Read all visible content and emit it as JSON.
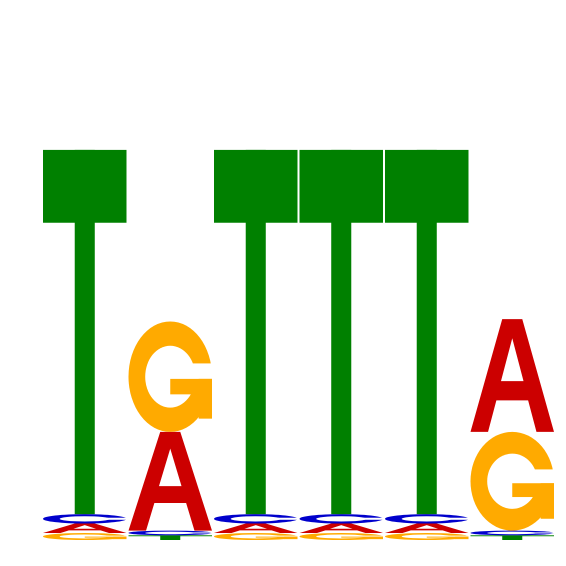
{
  "chart_data": {
    "type": "sequence-logo",
    "alphabet": [
      "A",
      "C",
      "G",
      "T"
    ],
    "colors": {
      "A": "#cc0000",
      "C": "#0000cc",
      "G": "#ffaa00",
      "T": "#008000"
    },
    "positions": [
      {
        "position": 1,
        "heights": {
          "T": 1.55,
          "A": 0.04,
          "G": 0.03,
          "C": 0.04
        }
      },
      {
        "position": 2,
        "heights": {
          "G": 0.47,
          "A": 0.42,
          "T": 0.02,
          "C": 0.02
        }
      },
      {
        "position": 3,
        "heights": {
          "T": 1.55,
          "A": 0.04,
          "G": 0.03,
          "C": 0.04
        }
      },
      {
        "position": 4,
        "heights": {
          "T": 1.55,
          "A": 0.04,
          "G": 0.03,
          "C": 0.04
        }
      },
      {
        "position": 5,
        "heights": {
          "T": 1.55,
          "A": 0.04,
          "G": 0.03,
          "C": 0.04
        }
      },
      {
        "position": 6,
        "heights": {
          "A": 0.48,
          "G": 0.42,
          "T": 0.02,
          "C": 0.02
        }
      }
    ],
    "title": "",
    "xlabel": "",
    "ylabel": "",
    "grid": false,
    "legend": "none"
  }
}
